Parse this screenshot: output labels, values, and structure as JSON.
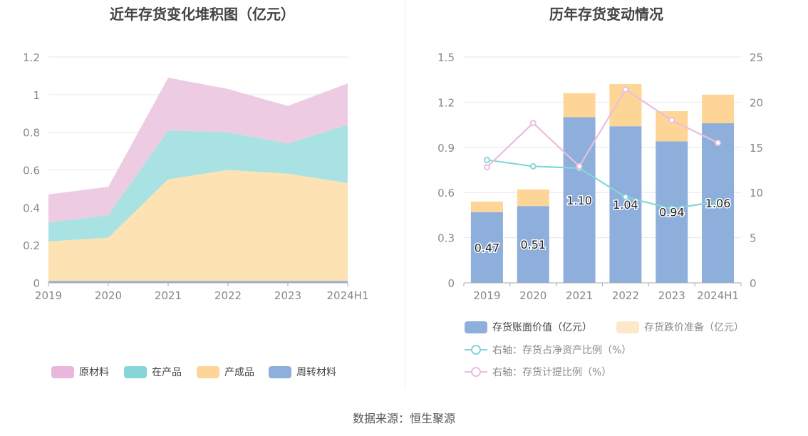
{
  "source": "数据来源：恒生聚源",
  "chart_data": [
    {
      "type": "area",
      "stacked": true,
      "title": "近年存货变化堆积图（亿元）",
      "categories": [
        "2019",
        "2020",
        "2021",
        "2022",
        "2023",
        "2024H1"
      ],
      "ylim": [
        0,
        1.2
      ],
      "yticks": [
        "0",
        "0.2",
        "0.4",
        "0.6",
        "0.8",
        "1",
        "1.2"
      ],
      "grid": true,
      "legend_position": "bottom",
      "series": [
        {
          "name": "周转材料",
          "color": "#8eaedb",
          "values": [
            0.01,
            0.01,
            0.01,
            0.01,
            0.01,
            0.01
          ]
        },
        {
          "name": "产成品",
          "color": "#fde2b4",
          "values": [
            0.21,
            0.23,
            0.54,
            0.59,
            0.57,
            0.52
          ]
        },
        {
          "name": "在产品",
          "color": "#a9e2e3",
          "values": [
            0.1,
            0.12,
            0.26,
            0.2,
            0.16,
            0.31
          ]
        },
        {
          "name": "原材料",
          "color": "#edcce3",
          "values": [
            0.15,
            0.15,
            0.28,
            0.23,
            0.2,
            0.22
          ]
        }
      ],
      "legend": [
        {
          "name": "原材料",
          "color": "#e8b7db"
        },
        {
          "name": "在产品",
          "color": "#84d6d8"
        },
        {
          "name": "产成品",
          "color": "#fdd697"
        },
        {
          "name": "周转材料",
          "color": "#8eaedb"
        }
      ]
    },
    {
      "type": "bar",
      "stacked": true,
      "title": "历年存货变动情况",
      "categories": [
        "2019",
        "2020",
        "2021",
        "2022",
        "2023",
        "2024H1"
      ],
      "ylim": [
        0,
        1.5
      ],
      "yticks": [
        "0",
        "0.3",
        "0.6",
        "0.9",
        "1.2",
        "1.5"
      ],
      "y2lim": [
        0,
        25
      ],
      "y2ticks": [
        "0",
        "5",
        "10",
        "15",
        "20",
        "25"
      ],
      "grid": true,
      "legend_position": "bottom",
      "series": [
        {
          "name": "存货账面价值（亿元）",
          "type": "bar",
          "axis": "left",
          "color": "#8eaedb",
          "values": [
            0.47,
            0.51,
            1.1,
            1.04,
            0.94,
            1.06
          ],
          "labels": [
            "0.47",
            "0.51",
            "1.10",
            "1.04",
            "0.94",
            "1.06"
          ]
        },
        {
          "name": "存货跌价准备（亿元）",
          "type": "bar",
          "axis": "left",
          "color": "#fdd697",
          "values": [
            0.07,
            0.11,
            0.16,
            0.28,
            0.2,
            0.19
          ]
        },
        {
          "name": "右轴：存货占净资产比例（%）",
          "type": "line",
          "axis": "right",
          "color": "#84d6d8",
          "values": [
            13.6,
            12.9,
            12.7,
            9.5,
            8.2,
            9.0
          ]
        },
        {
          "name": "右轴：存货计提比例（%）",
          "type": "line",
          "axis": "right",
          "color": "#e8c0dd",
          "values": [
            12.8,
            17.7,
            12.9,
            21.4,
            18.0,
            15.5
          ]
        }
      ]
    }
  ]
}
